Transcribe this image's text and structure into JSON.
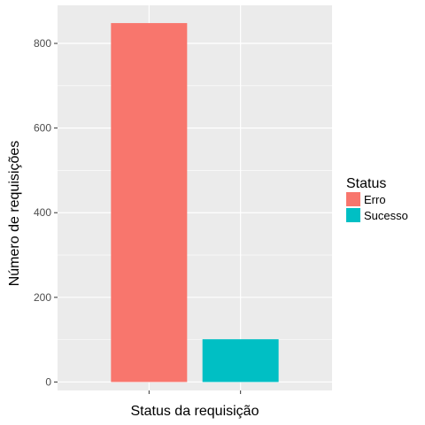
{
  "chart_data": {
    "type": "bar",
    "title": "",
    "xlabel": "Status da requisição",
    "ylabel": "Número de requisições",
    "categories": [
      "Erro",
      "Sucesso"
    ],
    "values": [
      848,
      101
    ],
    "ylim": [
      -20,
      890
    ],
    "yticks": [
      0,
      200,
      400,
      600,
      800
    ],
    "grid": true,
    "legend": {
      "title": "Status",
      "placement": "right",
      "entries": [
        "Erro",
        "Sucesso"
      ]
    },
    "colors": {
      "Erro": "#F8766D",
      "Sucesso": "#00BFC4",
      "panel_background": "#EBEBEB",
      "grid": "#FFFFFF"
    }
  }
}
